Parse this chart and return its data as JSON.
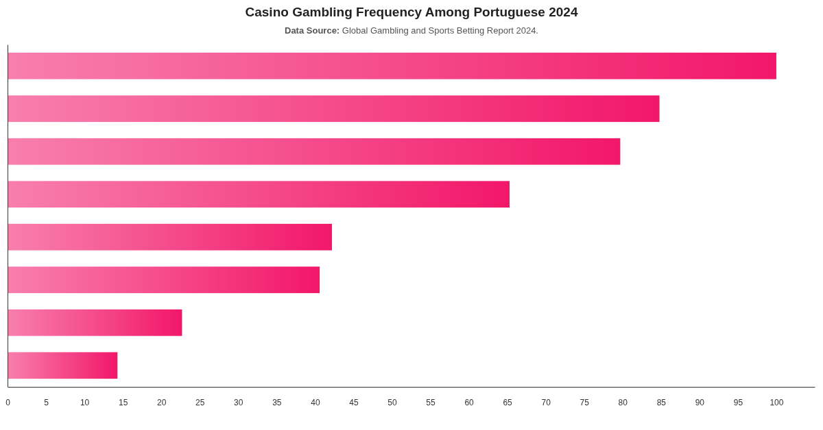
{
  "chart_data": {
    "type": "bar",
    "orientation": "horizontal",
    "title": "Casino Gambling Frequency Among Portuguese 2024",
    "subtitle": "Data Source: Global Gambling and Sports Betting Report 2024.",
    "categories": [
      null,
      null,
      null,
      null,
      null,
      null,
      null,
      null
    ],
    "values": [
      100,
      84.8,
      79.7,
      65.3,
      42.2,
      40.6,
      22.7,
      14.3
    ],
    "color": "#f2176a",
    "xlim": [
      0,
      105
    ],
    "xticks": [
      0,
      5,
      10,
      15,
      20,
      25,
      30,
      35,
      40,
      45,
      50,
      55,
      60,
      65,
      70,
      75,
      80,
      85,
      90,
      95,
      100
    ],
    "grid": false
  }
}
